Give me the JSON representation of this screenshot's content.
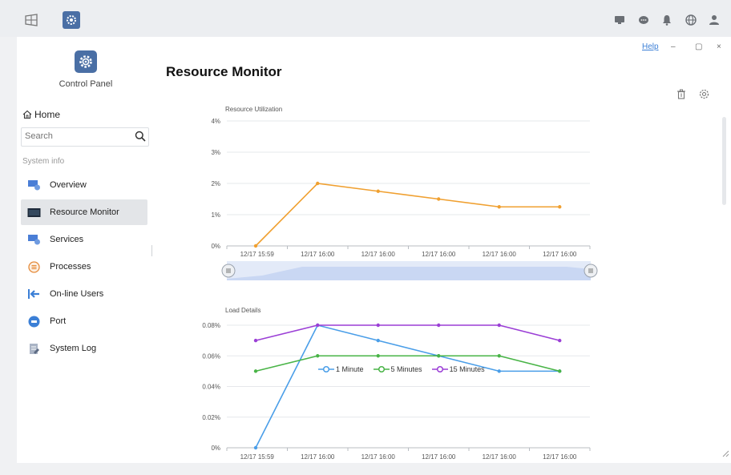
{
  "taskbar": {
    "left_icons": [
      "show-desktop-icon",
      "control-panel-app-icon"
    ],
    "right_icons": [
      "video-icon",
      "chat-icon",
      "bell-icon",
      "globe-icon",
      "user-icon"
    ]
  },
  "window": {
    "help_label": "Help",
    "minimize_label": "–",
    "restore_label": "▢",
    "close_label": "×",
    "title": "Resource Monitor"
  },
  "sidebar": {
    "app_label": "Control Panel",
    "home_label": "Home",
    "search_placeholder": "Search",
    "section_label": "System info",
    "items": [
      {
        "label": "Overview",
        "icon": "overview-icon",
        "color": "#4a7ed6"
      },
      {
        "label": "Resource Monitor",
        "icon": "monitor-icon",
        "color": "#1e2a3a"
      },
      {
        "label": "Services",
        "icon": "services-icon",
        "color": "#4a7ed6"
      },
      {
        "label": "Processes",
        "icon": "processes-icon",
        "color": "#e58a3a"
      },
      {
        "label": "On-line Users",
        "icon": "online-users-icon",
        "color": "#3b7fd6"
      },
      {
        "label": "Port",
        "icon": "port-icon",
        "color": "#3b7fd6"
      },
      {
        "label": "System Log",
        "icon": "system-log-icon",
        "color": "#7a8aa6"
      }
    ],
    "active_index": 1
  },
  "content": {
    "toolbar_icons": [
      "trash-icon",
      "settings-icon"
    ]
  },
  "chart_data": [
    {
      "type": "line",
      "title": "Resource Utilization",
      "x": [
        "12/17 15:59",
        "12/17 16:00",
        "12/17 16:00",
        "12/17 16:00",
        "12/17 16:00",
        "12/17 16:00"
      ],
      "series": [
        {
          "color": "#f0a030",
          "values": [
            0,
            2,
            1.75,
            1.5,
            1.25,
            1.25
          ]
        }
      ],
      "y_ticks": [
        "0%",
        "1%",
        "2%",
        "3%",
        "4%"
      ],
      "ylim": [
        0,
        4
      ],
      "grid": true
    },
    {
      "type": "line",
      "title": "Load Details",
      "x": [
        "12/17 15:59",
        "12/17 16:00",
        "12/17 16:00",
        "12/17 16:00",
        "12/17 16:00",
        "12/17 16:00"
      ],
      "series": [
        {
          "name": "1 Minute",
          "color": "#4a9ee8",
          "values": [
            0,
            0.08,
            0.07,
            0.06,
            0.05,
            0.05
          ]
        },
        {
          "name": "5 Minutes",
          "color": "#49b447",
          "values": [
            0.05,
            0.06,
            0.06,
            0.06,
            0.06,
            0.05
          ]
        },
        {
          "name": "15 Minutes",
          "color": "#9b3fd6",
          "values": [
            0.07,
            0.08,
            0.08,
            0.08,
            0.08,
            0.07
          ]
        }
      ],
      "y_ticks": [
        "0%",
        "0.02%",
        "0.04%",
        "0.06%",
        "0.08%"
      ],
      "ylim": [
        0,
        0.08
      ],
      "legend": "top-center",
      "grid": true
    }
  ]
}
